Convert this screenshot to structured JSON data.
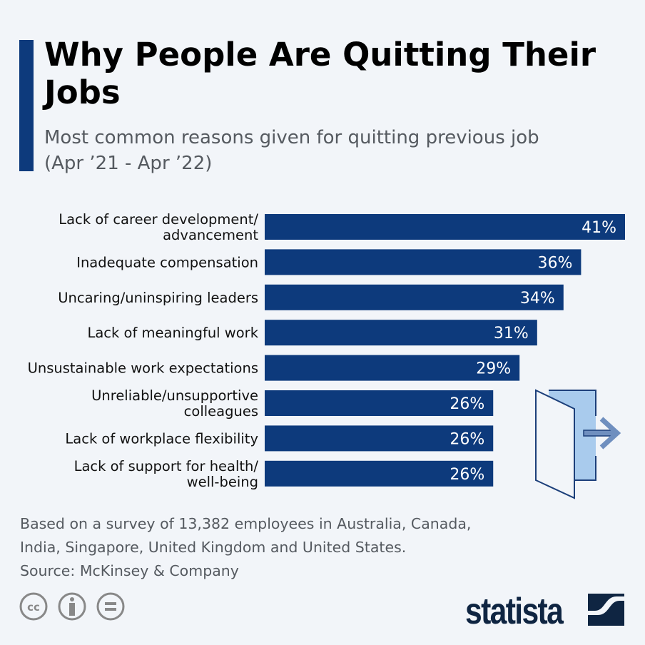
{
  "title": "Why People Are Quitting Their Jobs",
  "subtitle_line1": "Most common reasons given for quitting previous job",
  "subtitle_line2": "(Apr ’21 - Apr ’22)",
  "colors": {
    "bar": "#0d3a7c",
    "accent": "#0d3a7c",
    "value_label": "#ffffff",
    "door_fill": "#a9cbed"
  },
  "chart_data": {
    "type": "bar",
    "orientation": "horizontal",
    "categories": [
      [
        "Lack of career development/",
        "advancement"
      ],
      [
        "Inadequate compensation"
      ],
      [
        "Uncaring/uninspiring leaders"
      ],
      [
        "Lack of meaningful work"
      ],
      [
        "Unsustainable work expectations"
      ],
      [
        "Unreliable/unsupportive",
        "colleagues"
      ],
      [
        "Lack of workplace flexibility"
      ],
      [
        "Lack of support for health/",
        "well-being"
      ]
    ],
    "values": [
      41,
      36,
      34,
      31,
      29,
      26,
      26,
      26
    ],
    "value_labels": [
      "41%",
      "36%",
      "34%",
      "31%",
      "29%",
      "26%",
      "26%",
      "26%"
    ],
    "unit": "%",
    "grid": false
  },
  "footnote_line1": "Based on a survey of 13,382 employees in Australia, Canada,",
  "footnote_line2": "India, Singapore, United Kingdom and United States.",
  "source": "Source: McKinsey & Company",
  "license_icons": [
    "cc-icon",
    "by-attribution-icon",
    "no-derivatives-icon"
  ],
  "logo": "statista"
}
